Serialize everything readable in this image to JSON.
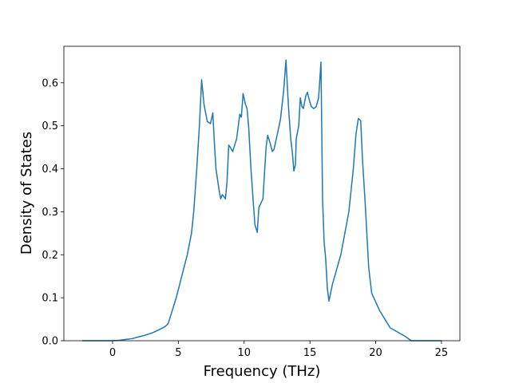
{
  "chart_data": {
    "type": "line",
    "xlabel": "Frequency (THz)",
    "ylabel": "Density of States",
    "xlim": [
      -3.7,
      26.4
    ],
    "ylim": [
      0,
      0.685
    ],
    "xticks": [
      0,
      5,
      10,
      15,
      20,
      25
    ],
    "yticks": [
      {
        "value": 0,
        "label": "0.0"
      },
      {
        "value": 0.1,
        "label": "0.1"
      },
      {
        "value": 0.2,
        "label": "0.2"
      },
      {
        "value": 0.3,
        "label": "0.3"
      },
      {
        "value": 0.4,
        "label": "0.4"
      },
      {
        "value": 0.5,
        "label": "0.5"
      },
      {
        "value": 0.6,
        "label": "0.6"
      }
    ],
    "grid": false,
    "series": [
      {
        "color": "#1f77b4",
        "x": [
          -2.3,
          0,
          0.5,
          1,
          1.5,
          2,
          2.5,
          3,
          3.5,
          4,
          4.23,
          4.84,
          5.26,
          5.68,
          6.0,
          6.17,
          6.4,
          6.6,
          6.77,
          6.95,
          7.2,
          7.44,
          7.62,
          7.74,
          7.86,
          8.1,
          8.22,
          8.34,
          8.58,
          8.7,
          8.83,
          8.95,
          9.13,
          9.43,
          9.67,
          9.79,
          9.92,
          10.1,
          10.22,
          10.34,
          10.52,
          10.7,
          10.82,
          11.0,
          11.12,
          11.43,
          11.67,
          11.79,
          11.97,
          12.15,
          12.27,
          12.52,
          12.76,
          13.0,
          13.18,
          13.36,
          13.54,
          13.66,
          13.78,
          13.9,
          13.96,
          14.15,
          14.27,
          14.39,
          14.5,
          14.69,
          14.81,
          15.0,
          15.1,
          15.3,
          15.48,
          15.66,
          15.84,
          15.96,
          16.08,
          16.2,
          16.33,
          16.45,
          16.7,
          17.35,
          17.96,
          18.3,
          18.5,
          18.68,
          18.86,
          19.0,
          19.2,
          19.47,
          19.7,
          20.3,
          21.1,
          22.25,
          22.7,
          25
        ],
        "values": [
          0,
          0,
          0.001,
          0.003,
          0.005,
          0.009,
          0.013,
          0.018,
          0.025,
          0.033,
          0.04,
          0.1,
          0.15,
          0.2,
          0.25,
          0.3,
          0.4,
          0.5,
          0.607,
          0.55,
          0.51,
          0.505,
          0.53,
          0.46,
          0.4,
          0.35,
          0.33,
          0.34,
          0.33,
          0.37,
          0.455,
          0.45,
          0.44,
          0.47,
          0.527,
          0.52,
          0.575,
          0.55,
          0.54,
          0.5,
          0.4,
          0.32,
          0.27,
          0.252,
          0.31,
          0.33,
          0.45,
          0.478,
          0.46,
          0.44,
          0.445,
          0.48,
          0.515,
          0.58,
          0.653,
          0.55,
          0.47,
          0.44,
          0.395,
          0.41,
          0.47,
          0.5,
          0.565,
          0.545,
          0.54,
          0.57,
          0.578,
          0.555,
          0.545,
          0.54,
          0.545,
          0.565,
          0.648,
          0.33,
          0.23,
          0.19,
          0.12,
          0.092,
          0.13,
          0.2,
          0.3,
          0.4,
          0.48,
          0.517,
          0.512,
          0.42,
          0.32,
          0.17,
          0.11,
          0.07,
          0.03,
          0.01,
          0,
          0
        ]
      }
    ]
  }
}
